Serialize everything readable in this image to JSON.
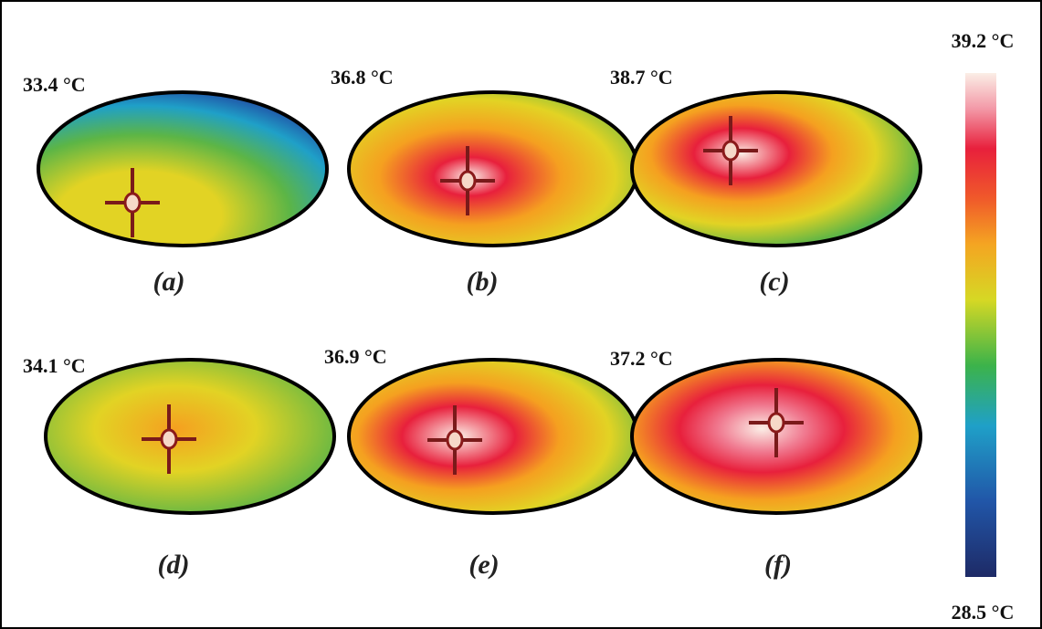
{
  "panels": [
    {
      "temperature": "33.4 °C",
      "caption": "(a)"
    },
    {
      "temperature": "36.8 °C",
      "caption": "(b)"
    },
    {
      "temperature": "38.7 °C",
      "caption": "(c)"
    },
    {
      "temperature": "34.1 °C",
      "caption": "(d)"
    },
    {
      "temperature": "36.9 °C",
      "caption": "(e)"
    },
    {
      "temperature": "37.2 °C",
      "caption": "(f)"
    }
  ],
  "colorbar": {
    "max_label": "39.2 °C",
    "min_label": "28.5 °C"
  }
}
